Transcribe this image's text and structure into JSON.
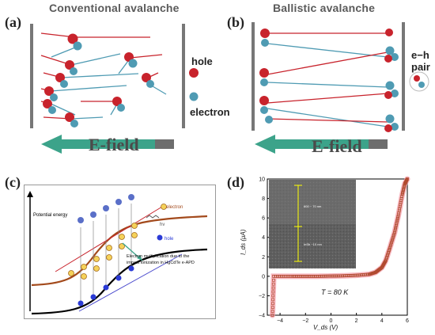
{
  "panel_a": {
    "label": "(a)",
    "title": "Conventional avalanche",
    "legend_hole": "hole",
    "legend_electron": "electron",
    "efield": "E-field"
  },
  "panel_b": {
    "label": "(b)",
    "title": "Ballistic avalanche",
    "legend_pair": "e−h pair",
    "efield": "E-field"
  },
  "panel_c": {
    "label": "(c)",
    "y_label": "Potential energy",
    "legend_electron": "electron",
    "legend_hole": "hole",
    "hv": "hν",
    "annotation": "Electron multiplication due to the impact ionization in HgCdTe e-APD"
  },
  "panel_d": {
    "label": "(d)",
    "temperature": "T = 80 K",
    "inset_labels": [
      "600 ~ 70 nm",
      "InSb ~10 nm"
    ]
  },
  "chart_data": {
    "type": "line",
    "xlabel": "V_ds (V)",
    "ylabel": "I_ds (μA)",
    "xlim": [
      -5,
      6
    ],
    "ylim": [
      -4,
      10
    ],
    "xticks": [
      "−4",
      "−2",
      "0",
      "2",
      "4",
      "6"
    ],
    "yticks": [
      "−4",
      "−2",
      "0",
      "2",
      "4",
      "6",
      "8",
      "10"
    ],
    "series": [
      {
        "x": [
          -4.6,
          -4.5,
          -3,
          -2,
          -1,
          0,
          1,
          2,
          3,
          3.5,
          4,
          4.3,
          4.6,
          5,
          5.3,
          5.6,
          5.8,
          6
        ],
        "y": [
          -4,
          0,
          0,
          0,
          0,
          0.02,
          0.05,
          0.1,
          0.2,
          0.4,
          0.9,
          1.6,
          2.8,
          4.5,
          6.3,
          8.4,
          9.5,
          10
        ]
      }
    ],
    "colors": {
      "data": "#b04a2f",
      "glow": "#f39aa6"
    }
  },
  "colors": {
    "hole": "#c8232c",
    "electron": "#4f9bb3",
    "efield_arrow": "#3ca38a",
    "efield_bar": "#6d6d6d"
  }
}
